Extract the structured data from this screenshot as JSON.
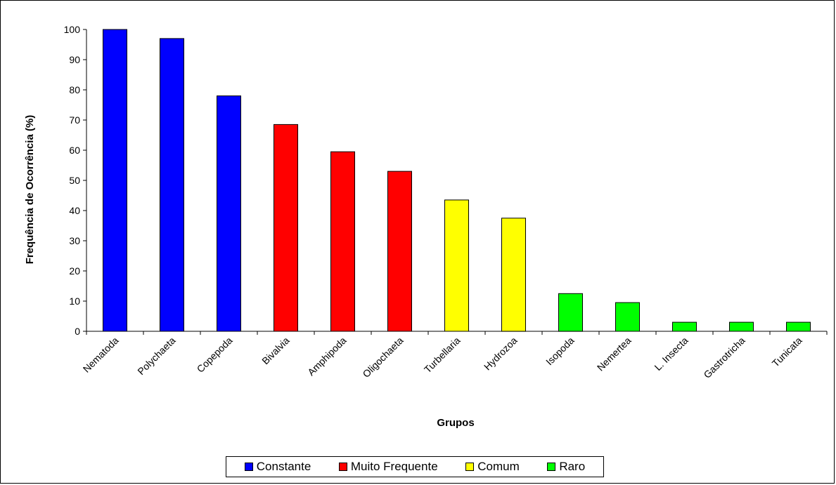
{
  "chart_data": {
    "type": "bar",
    "xlabel": "Grupos",
    "ylabel": "Frequência de Ocorrência (%)",
    "ylim": [
      0,
      100
    ],
    "yticks": [
      "0",
      "10",
      "20",
      "30",
      "40",
      "50",
      "60",
      "70",
      "80",
      "90",
      "100"
    ],
    "grid": false,
    "legend_position": "bottom",
    "categories": [
      "Nematoda",
      "Polychaeta",
      "Copepoda",
      "Bivalvia",
      "Amphipoda",
      "Oligochaeta",
      "Turbellaria",
      "Hydrozoa",
      "Isopoda",
      "Nemertea",
      "L. Insecta",
      "Gastrotricha",
      "Tunicata"
    ],
    "values": [
      100,
      97,
      78,
      68.5,
      59.5,
      53,
      43.5,
      37.5,
      12.5,
      9.5,
      3,
      3,
      3
    ],
    "class_of_bar": [
      0,
      0,
      0,
      1,
      1,
      1,
      2,
      2,
      3,
      3,
      3,
      3,
      3
    ],
    "legend": [
      {
        "name": "Constante",
        "color": "#0000FF"
      },
      {
        "name": "Muito Frequente",
        "color": "#FF0000"
      },
      {
        "name": "Comum",
        "color": "#FFFF00"
      },
      {
        "name": "Raro",
        "color": "#00FF00"
      }
    ]
  }
}
